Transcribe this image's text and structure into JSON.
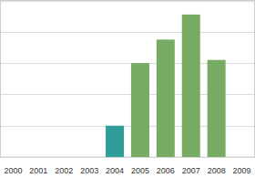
{
  "chart_data": {
    "type": "bar",
    "categories": [
      "2000",
      "2001",
      "2002",
      "2003",
      "2004",
      "2005",
      "2006",
      "2007",
      "2008",
      "2009"
    ],
    "values": [
      0,
      0,
      0,
      0,
      1.0,
      3.0,
      3.75,
      4.55,
      3.1,
      0
    ],
    "colors": [
      "#78ab64",
      "#78ab64",
      "#78ab64",
      "#78ab64",
      "#2f9e98",
      "#78ab64",
      "#78ab64",
      "#78ab64",
      "#78ab64",
      "#78ab64"
    ],
    "ylim": [
      0,
      5
    ],
    "yticks": [
      0,
      1,
      2,
      3,
      4,
      5
    ],
    "grid": true,
    "tick_labels": "x"
  }
}
